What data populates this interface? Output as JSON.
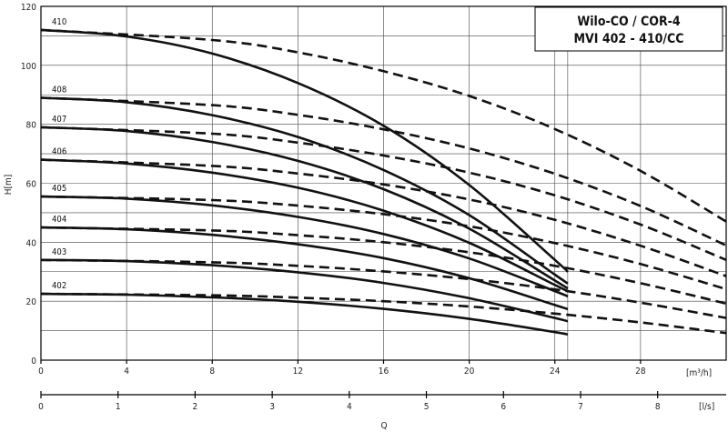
{
  "chart_data": {
    "type": "line",
    "title_line1": "Wilo-CO / COR-4",
    "title_line2": "MVI 402 - 410/CC",
    "ylabel": "H[m]",
    "xlabel": "Q",
    "x_unit_primary": "[m³/h]",
    "x_unit_secondary": "[l/s]",
    "xlim_m3h": [
      0,
      32
    ],
    "xlim_ls": [
      0,
      8.89
    ],
    "ylim": [
      0,
      120
    ],
    "grid": true,
    "x_ticks_m3h": [
      "0",
      "4",
      "8",
      "12",
      "16",
      "20",
      "24",
      "28"
    ],
    "x_ticks_ls": [
      "0",
      "1",
      "2",
      "3",
      "4",
      "5",
      "6",
      "7",
      "8"
    ],
    "y_ticks": [
      "0",
      "20",
      "40",
      "60",
      "80",
      "100",
      "120"
    ],
    "series": [
      {
        "name": "402",
        "solid": [
          [
            0,
            22.5
          ],
          [
            4,
            22.2
          ],
          [
            8,
            21.3
          ],
          [
            12,
            19.8
          ],
          [
            16,
            17.4
          ],
          [
            20,
            14.0
          ],
          [
            24,
            9.5
          ],
          [
            24.6,
            8.7
          ]
        ],
        "dashed": [
          [
            0,
            22.5
          ],
          [
            8,
            22.0
          ],
          [
            12,
            21.2
          ],
          [
            16,
            20.0
          ],
          [
            20,
            18.2
          ],
          [
            24,
            15.8
          ],
          [
            28,
            12.8
          ],
          [
            32,
            9.2
          ]
        ]
      },
      {
        "name": "403",
        "solid": [
          [
            0,
            34.0
          ],
          [
            4,
            33.6
          ],
          [
            8,
            32.2
          ],
          [
            12,
            29.8
          ],
          [
            16,
            26.2
          ],
          [
            20,
            21.0
          ],
          [
            24,
            14.3
          ],
          [
            24.6,
            13.2
          ]
        ],
        "dashed": [
          [
            0,
            34.0
          ],
          [
            8,
            33.2
          ],
          [
            12,
            32.0
          ],
          [
            16,
            30.1
          ],
          [
            20,
            27.5
          ],
          [
            24,
            24.0
          ],
          [
            28,
            19.5
          ],
          [
            32,
            14.3
          ]
        ]
      },
      {
        "name": "404",
        "solid": [
          [
            0,
            45.0
          ],
          [
            4,
            44.4
          ],
          [
            8,
            42.5
          ],
          [
            12,
            39.3
          ],
          [
            16,
            34.6
          ],
          [
            20,
            27.8
          ],
          [
            24,
            18.7
          ],
          [
            24.6,
            17.3
          ]
        ],
        "dashed": [
          [
            0,
            45.0
          ],
          [
            8,
            44.0
          ],
          [
            12,
            42.4
          ],
          [
            16,
            40.0
          ],
          [
            20,
            36.6
          ],
          [
            24,
            32.0
          ],
          [
            28,
            26.1
          ],
          [
            32,
            19.2
          ]
        ]
      },
      {
        "name": "405",
        "solid": [
          [
            0,
            55.5
          ],
          [
            4,
            54.8
          ],
          [
            8,
            52.5
          ],
          [
            12,
            48.6
          ],
          [
            16,
            42.8
          ],
          [
            20,
            34.5
          ],
          [
            24,
            23.4
          ],
          [
            24.6,
            21.6
          ]
        ],
        "dashed": [
          [
            0,
            55.5
          ],
          [
            8,
            54.3
          ],
          [
            12,
            52.4
          ],
          [
            16,
            49.5
          ],
          [
            20,
            45.4
          ],
          [
            24,
            39.7
          ],
          [
            28,
            32.6
          ],
          [
            32,
            24.1
          ]
        ]
      },
      {
        "name": "406",
        "solid": [
          [
            0,
            68.0
          ],
          [
            4,
            66.7
          ],
          [
            8,
            63.6
          ],
          [
            12,
            58.5
          ],
          [
            16,
            50.7
          ],
          [
            20,
            39.8
          ],
          [
            24,
            25.5
          ],
          [
            24.6,
            23.4
          ]
        ],
        "dashed": [
          [
            0,
            68.0
          ],
          [
            8,
            65.9
          ],
          [
            12,
            63.3
          ],
          [
            16,
            59.6
          ],
          [
            20,
            54.5
          ],
          [
            24,
            47.6
          ],
          [
            28,
            38.8
          ],
          [
            32,
            28.5
          ]
        ]
      },
      {
        "name": "407",
        "solid": [
          [
            0,
            79.0
          ],
          [
            4,
            77.7
          ],
          [
            8,
            74.0
          ],
          [
            12,
            67.6
          ],
          [
            16,
            58.0
          ],
          [
            20,
            44.6
          ],
          [
            24,
            27.0
          ],
          [
            24.6,
            24.3
          ]
        ],
        "dashed": [
          [
            0,
            79.0
          ],
          [
            8,
            76.8
          ],
          [
            12,
            73.8
          ],
          [
            16,
            69.4
          ],
          [
            20,
            63.6
          ],
          [
            24,
            55.9
          ],
          [
            28,
            46.0
          ],
          [
            32,
            34.0
          ]
        ]
      },
      {
        "name": "408",
        "solid": [
          [
            0,
            89.0
          ],
          [
            4,
            87.5
          ],
          [
            8,
            83.1
          ],
          [
            12,
            75.7
          ],
          [
            16,
            64.5
          ],
          [
            20,
            49.2
          ],
          [
            24,
            29.0
          ],
          [
            24.6,
            26.0
          ]
        ],
        "dashed": [
          [
            0,
            89.0
          ],
          [
            8,
            86.5
          ],
          [
            12,
            83.2
          ],
          [
            16,
            78.3
          ],
          [
            20,
            71.8
          ],
          [
            24,
            63.2
          ],
          [
            28,
            52.3
          ],
          [
            32,
            38.9
          ]
        ]
      },
      {
        "name": "410",
        "solid": [
          [
            0,
            112.0
          ],
          [
            4,
            109.8
          ],
          [
            8,
            104.0
          ],
          [
            12,
            94.0
          ],
          [
            16,
            79.5
          ],
          [
            20,
            59.4
          ],
          [
            24,
            34.0
          ],
          [
            24.6,
            30.0
          ]
        ],
        "dashed": [
          [
            0,
            112.0
          ],
          [
            8,
            108.6
          ],
          [
            12,
            104.4
          ],
          [
            16,
            98.0
          ],
          [
            20,
            89.6
          ],
          [
            24,
            78.4
          ],
          [
            28,
            64.2
          ],
          [
            32,
            47.0
          ]
        ]
      }
    ]
  }
}
